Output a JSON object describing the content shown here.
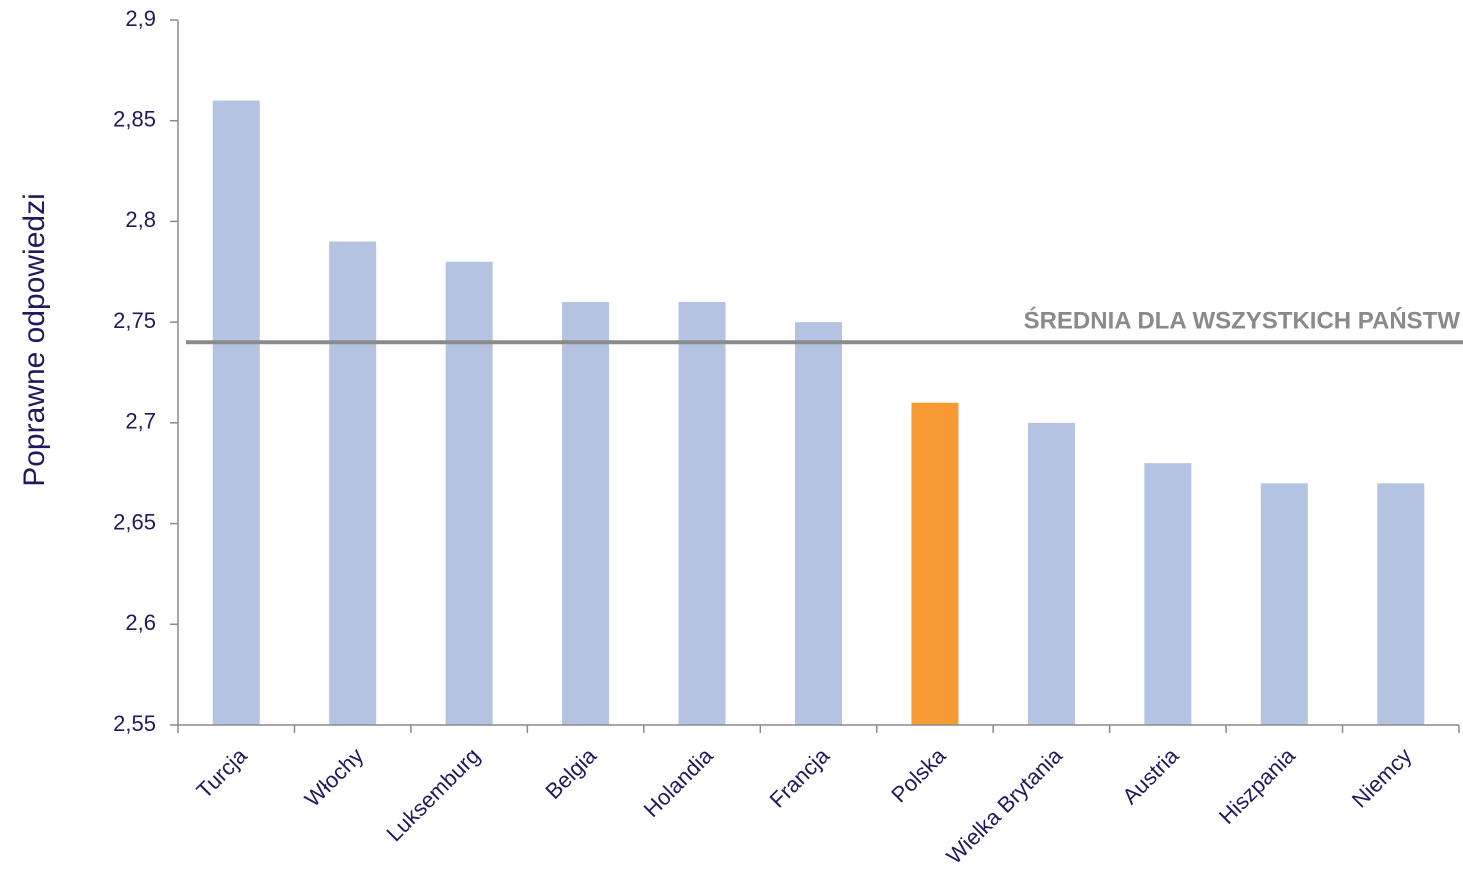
{
  "chart_data": {
    "type": "bar",
    "y_axis_label": "Poprawne odpowiedzi",
    "categories": [
      "Turcja",
      "Włochy",
      "Luksemburg",
      "Belgia",
      "Holandia",
      "Francja",
      "Polska",
      "Wielka Brytania",
      "Austria",
      "Hiszpania",
      "Niemcy"
    ],
    "values": [
      2.86,
      2.79,
      2.78,
      2.76,
      2.76,
      2.75,
      2.71,
      2.7,
      2.68,
      2.67,
      2.67
    ],
    "colors": [
      "#b4c3e1",
      "#b4c3e1",
      "#b4c3e1",
      "#b4c3e1",
      "#b4c3e1",
      "#b4c3e1",
      "#f79a32",
      "#b4c3e1",
      "#b4c3e1",
      "#b4c3e1",
      "#b4c3e1"
    ],
    "ylim": [
      2.55,
      2.9
    ],
    "yticks": [
      {
        "value": 2.55,
        "label": "2,55"
      },
      {
        "value": 2.6,
        "label": "2,6"
      },
      {
        "value": 2.65,
        "label": "2,65"
      },
      {
        "value": 2.7,
        "label": "2,7"
      },
      {
        "value": 2.75,
        "label": "2,75"
      },
      {
        "value": 2.8,
        "label": "2,8"
      },
      {
        "value": 2.85,
        "label": "2,85"
      },
      {
        "value": 2.9,
        "label": "2,9"
      }
    ],
    "reference_line": {
      "value": 2.74,
      "label": "ŚREDNIA DLA WSZYSTKICH PAŃSTW",
      "color": "#8a8a8a"
    }
  }
}
